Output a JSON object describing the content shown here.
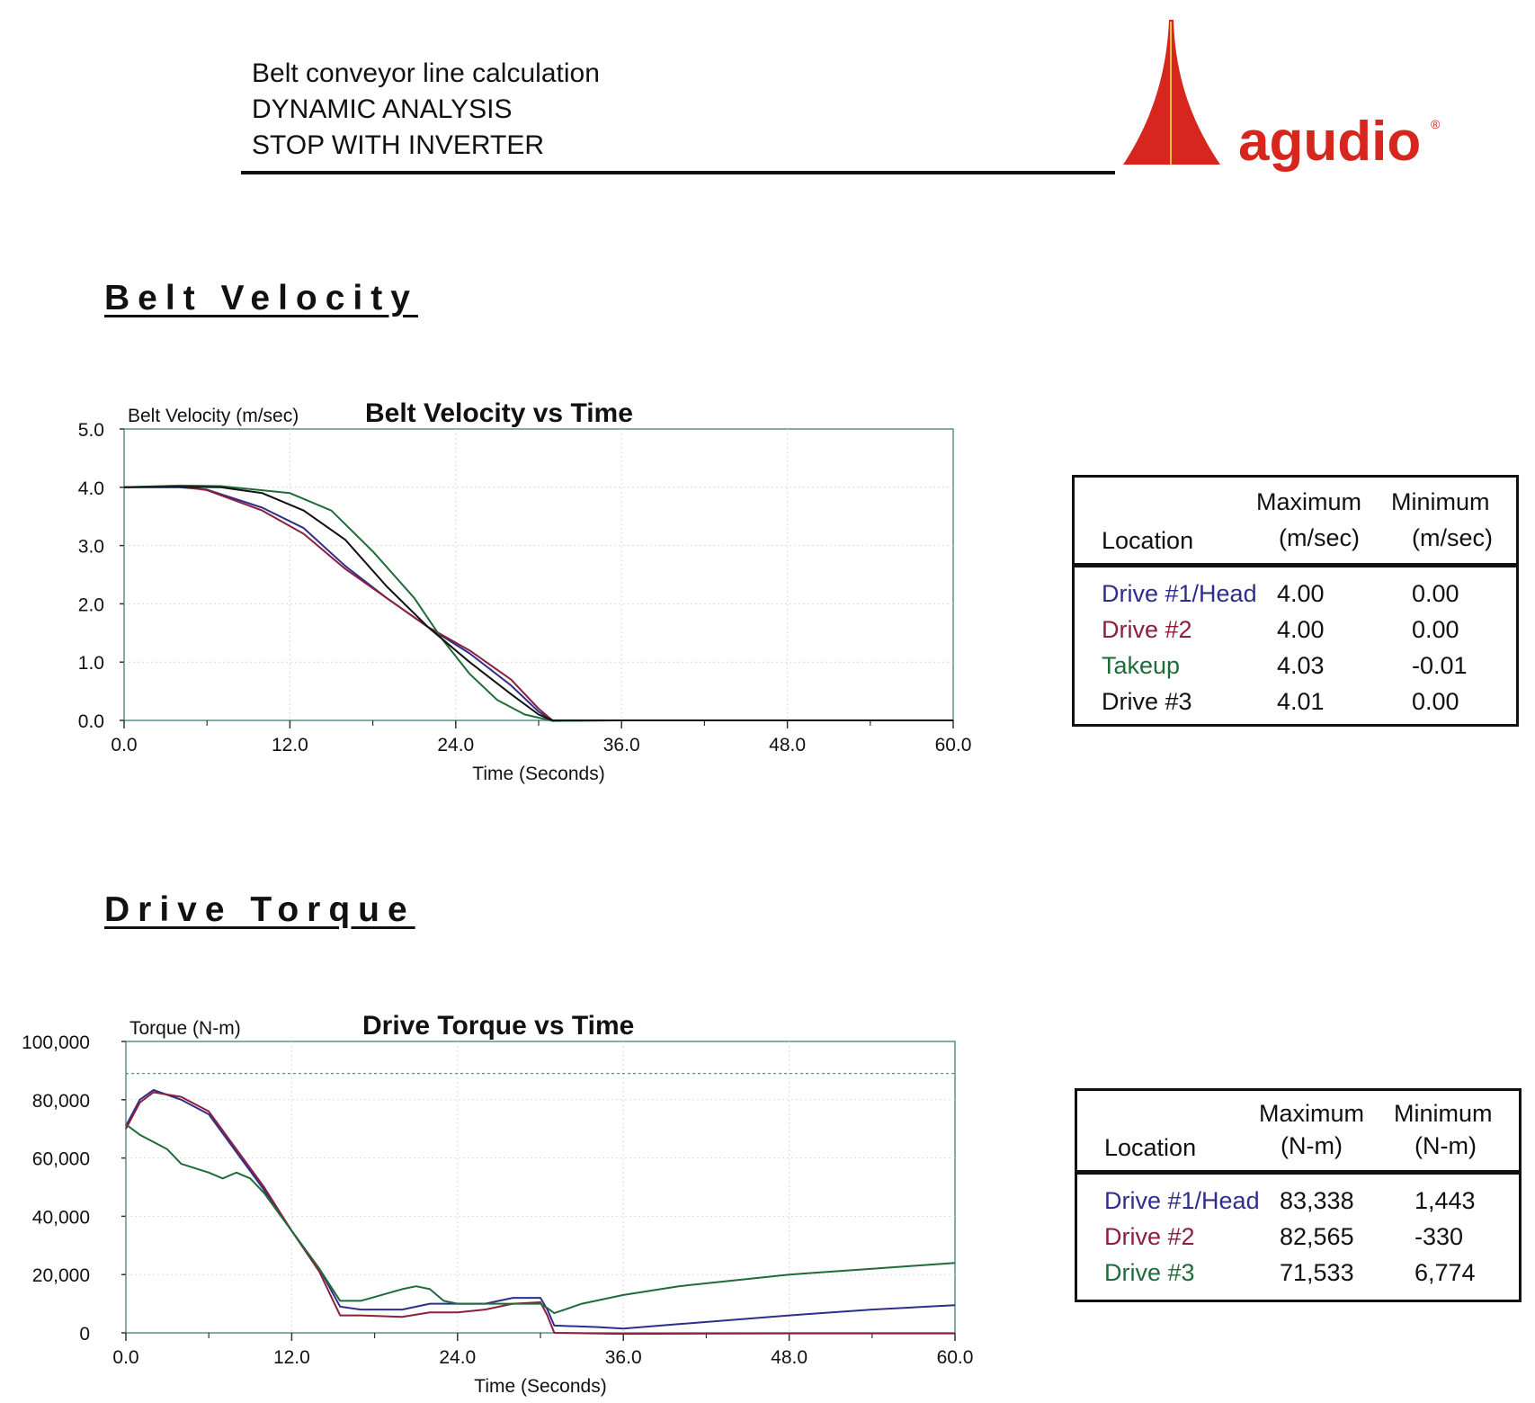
{
  "header": {
    "line1": "Belt conveyor line calculation",
    "line2": "DYNAMIC ANALYSIS",
    "line3": "STOP WITH INVERTER",
    "logo_text": "agudio",
    "logo_mark": "®",
    "brand_color": "#d7261e"
  },
  "velocity_section": {
    "title": "Belt Velocity",
    "table": {
      "header": {
        "location": "Location",
        "max_line1": "Maximum",
        "max_line2": "(m/sec)",
        "min_line1": "Minimum",
        "min_line2": "(m/sec)"
      },
      "rows": [
        {
          "location": "Drive #1/Head",
          "max": "4.00",
          "min": "0.00",
          "color": "#2e2e8c"
        },
        {
          "location": "Drive #2",
          "max": "4.00",
          "min": "0.00",
          "color": "#8c1f3c"
        },
        {
          "location": "Takeup",
          "max": "4.03",
          "min": "-0.01",
          "color": "#1f6b3a"
        },
        {
          "location": "Drive #3",
          "max": "4.01",
          "min": "0.00",
          "color": "#111111"
        }
      ]
    }
  },
  "torque_section": {
    "title": "Drive Torque",
    "table": {
      "header": {
        "location": "Location",
        "max_line1": "Maximum",
        "max_line2": "(N-m)",
        "min_line1": "Minimum",
        "min_line2": "(N-m)"
      },
      "rows": [
        {
          "location": "Drive #1/Head",
          "max": "83,338",
          "min": "1,443",
          "color": "#2e2e8c"
        },
        {
          "location": "Drive #2",
          "max": "82,565",
          "min": "-330",
          "color": "#8c1f3c"
        },
        {
          "location": "Drive #3",
          "max": "71,533",
          "min": "6,774",
          "color": "#1f6b3a"
        }
      ]
    }
  },
  "chart_data": [
    {
      "type": "line",
      "title": "Belt Velocity vs Time",
      "xlabel": "Time (Seconds)",
      "ylabel": "Belt Velocity (m/sec)",
      "xlim": [
        0,
        60
      ],
      "ylim": [
        0,
        5
      ],
      "xticks": [
        "0.0",
        "12.0",
        "24.0",
        "36.0",
        "48.0",
        "60.0"
      ],
      "yticks": [
        "0.0",
        "1.0",
        "2.0",
        "3.0",
        "4.0",
        "5.0"
      ],
      "grid": true,
      "series": [
        {
          "color": "#2e2e8c",
          "x": [
            0,
            4,
            6,
            10,
            13,
            16,
            19,
            22,
            25,
            28,
            30,
            31,
            36,
            48,
            60
          ],
          "y": [
            4.0,
            4.0,
            3.96,
            3.65,
            3.3,
            2.65,
            2.1,
            1.6,
            1.15,
            0.6,
            0.15,
            0.0,
            0.0,
            0.0,
            0.0
          ]
        },
        {
          "color": "#8c1f3c",
          "x": [
            0,
            4,
            6,
            10,
            13,
            16,
            19,
            22,
            25,
            28,
            30,
            31,
            36,
            48,
            60
          ],
          "y": [
            4.0,
            4.02,
            3.95,
            3.6,
            3.2,
            2.6,
            2.1,
            1.6,
            1.2,
            0.7,
            0.2,
            0.0,
            0.0,
            0.0,
            0.0
          ]
        },
        {
          "color": "#1f6b3a",
          "x": [
            0,
            4,
            7,
            12,
            15,
            18,
            21,
            23,
            25,
            27,
            29,
            30.5,
            31,
            36,
            48,
            60
          ],
          "y": [
            4.0,
            4.03,
            4.02,
            3.9,
            3.6,
            2.9,
            2.1,
            1.4,
            0.8,
            0.35,
            0.1,
            0.02,
            -0.01,
            0.0,
            0.0,
            0.0
          ]
        },
        {
          "color": "#111111",
          "x": [
            0,
            4,
            7,
            10,
            13,
            16,
            19,
            22,
            25,
            28,
            30,
            31,
            36,
            48,
            60
          ],
          "y": [
            4.0,
            4.01,
            4.0,
            3.9,
            3.6,
            3.1,
            2.3,
            1.6,
            1.0,
            0.45,
            0.1,
            0.0,
            0.0,
            0.0,
            0.0
          ]
        }
      ]
    },
    {
      "type": "line",
      "title": "Drive Torque vs Time",
      "xlabel": "Time (Seconds)",
      "ylabel": "Torque (N-m)",
      "xlim": [
        0,
        60
      ],
      "ylim": [
        0,
        100000
      ],
      "xticks": [
        "0.0",
        "12.0",
        "24.0",
        "36.0",
        "48.0",
        "60.0"
      ],
      "yticks": [
        "0",
        "20,000",
        "40,000",
        "60,000",
        "80,000",
        "100,000"
      ],
      "grid": true,
      "reference_line": {
        "y": 89000,
        "color": "#4aa07a"
      },
      "series": [
        {
          "color": "#2e2e8c",
          "x": [
            0,
            1,
            2,
            4,
            6,
            8,
            10,
            12,
            14,
            15.5,
            17,
            20,
            22,
            24,
            26,
            28,
            30,
            30.5,
            31,
            34,
            36,
            40,
            48,
            54,
            60
          ],
          "y": [
            71000,
            80000,
            83338,
            80000,
            75000,
            62000,
            49000,
            35000,
            22000,
            9000,
            8000,
            8000,
            10000,
            10000,
            10000,
            12000,
            12000,
            8000,
            2500,
            2000,
            1443,
            3000,
            6000,
            8000,
            9500
          ]
        },
        {
          "color": "#8c1f3c",
          "x": [
            0,
            1,
            2,
            4,
            6,
            8,
            10,
            12,
            14,
            15.5,
            17,
            20,
            22,
            24,
            26,
            28,
            30,
            30.5,
            31,
            36,
            48,
            60
          ],
          "y": [
            70000,
            79000,
            82565,
            81000,
            76000,
            63000,
            50000,
            35000,
            21000,
            6000,
            6000,
            5500,
            7000,
            7000,
            8000,
            10000,
            10500,
            6000,
            0,
            -330,
            -200,
            -200
          ]
        },
        {
          "color": "#1f6b3a",
          "x": [
            0,
            1,
            3,
            4,
            6,
            7,
            8,
            9,
            10,
            12,
            14,
            15.5,
            17,
            20,
            21,
            22,
            23,
            24,
            28,
            30,
            30.5,
            31,
            33,
            36,
            40,
            48,
            54,
            60
          ],
          "y": [
            71533,
            68000,
            63000,
            58000,
            55000,
            53000,
            55000,
            53000,
            48000,
            35000,
            22000,
            11000,
            11000,
            15000,
            16000,
            15000,
            11000,
            10000,
            10000,
            10000,
            8500,
            6774,
            10000,
            13000,
            16000,
            20000,
            22000,
            24000
          ]
        }
      ]
    }
  ]
}
